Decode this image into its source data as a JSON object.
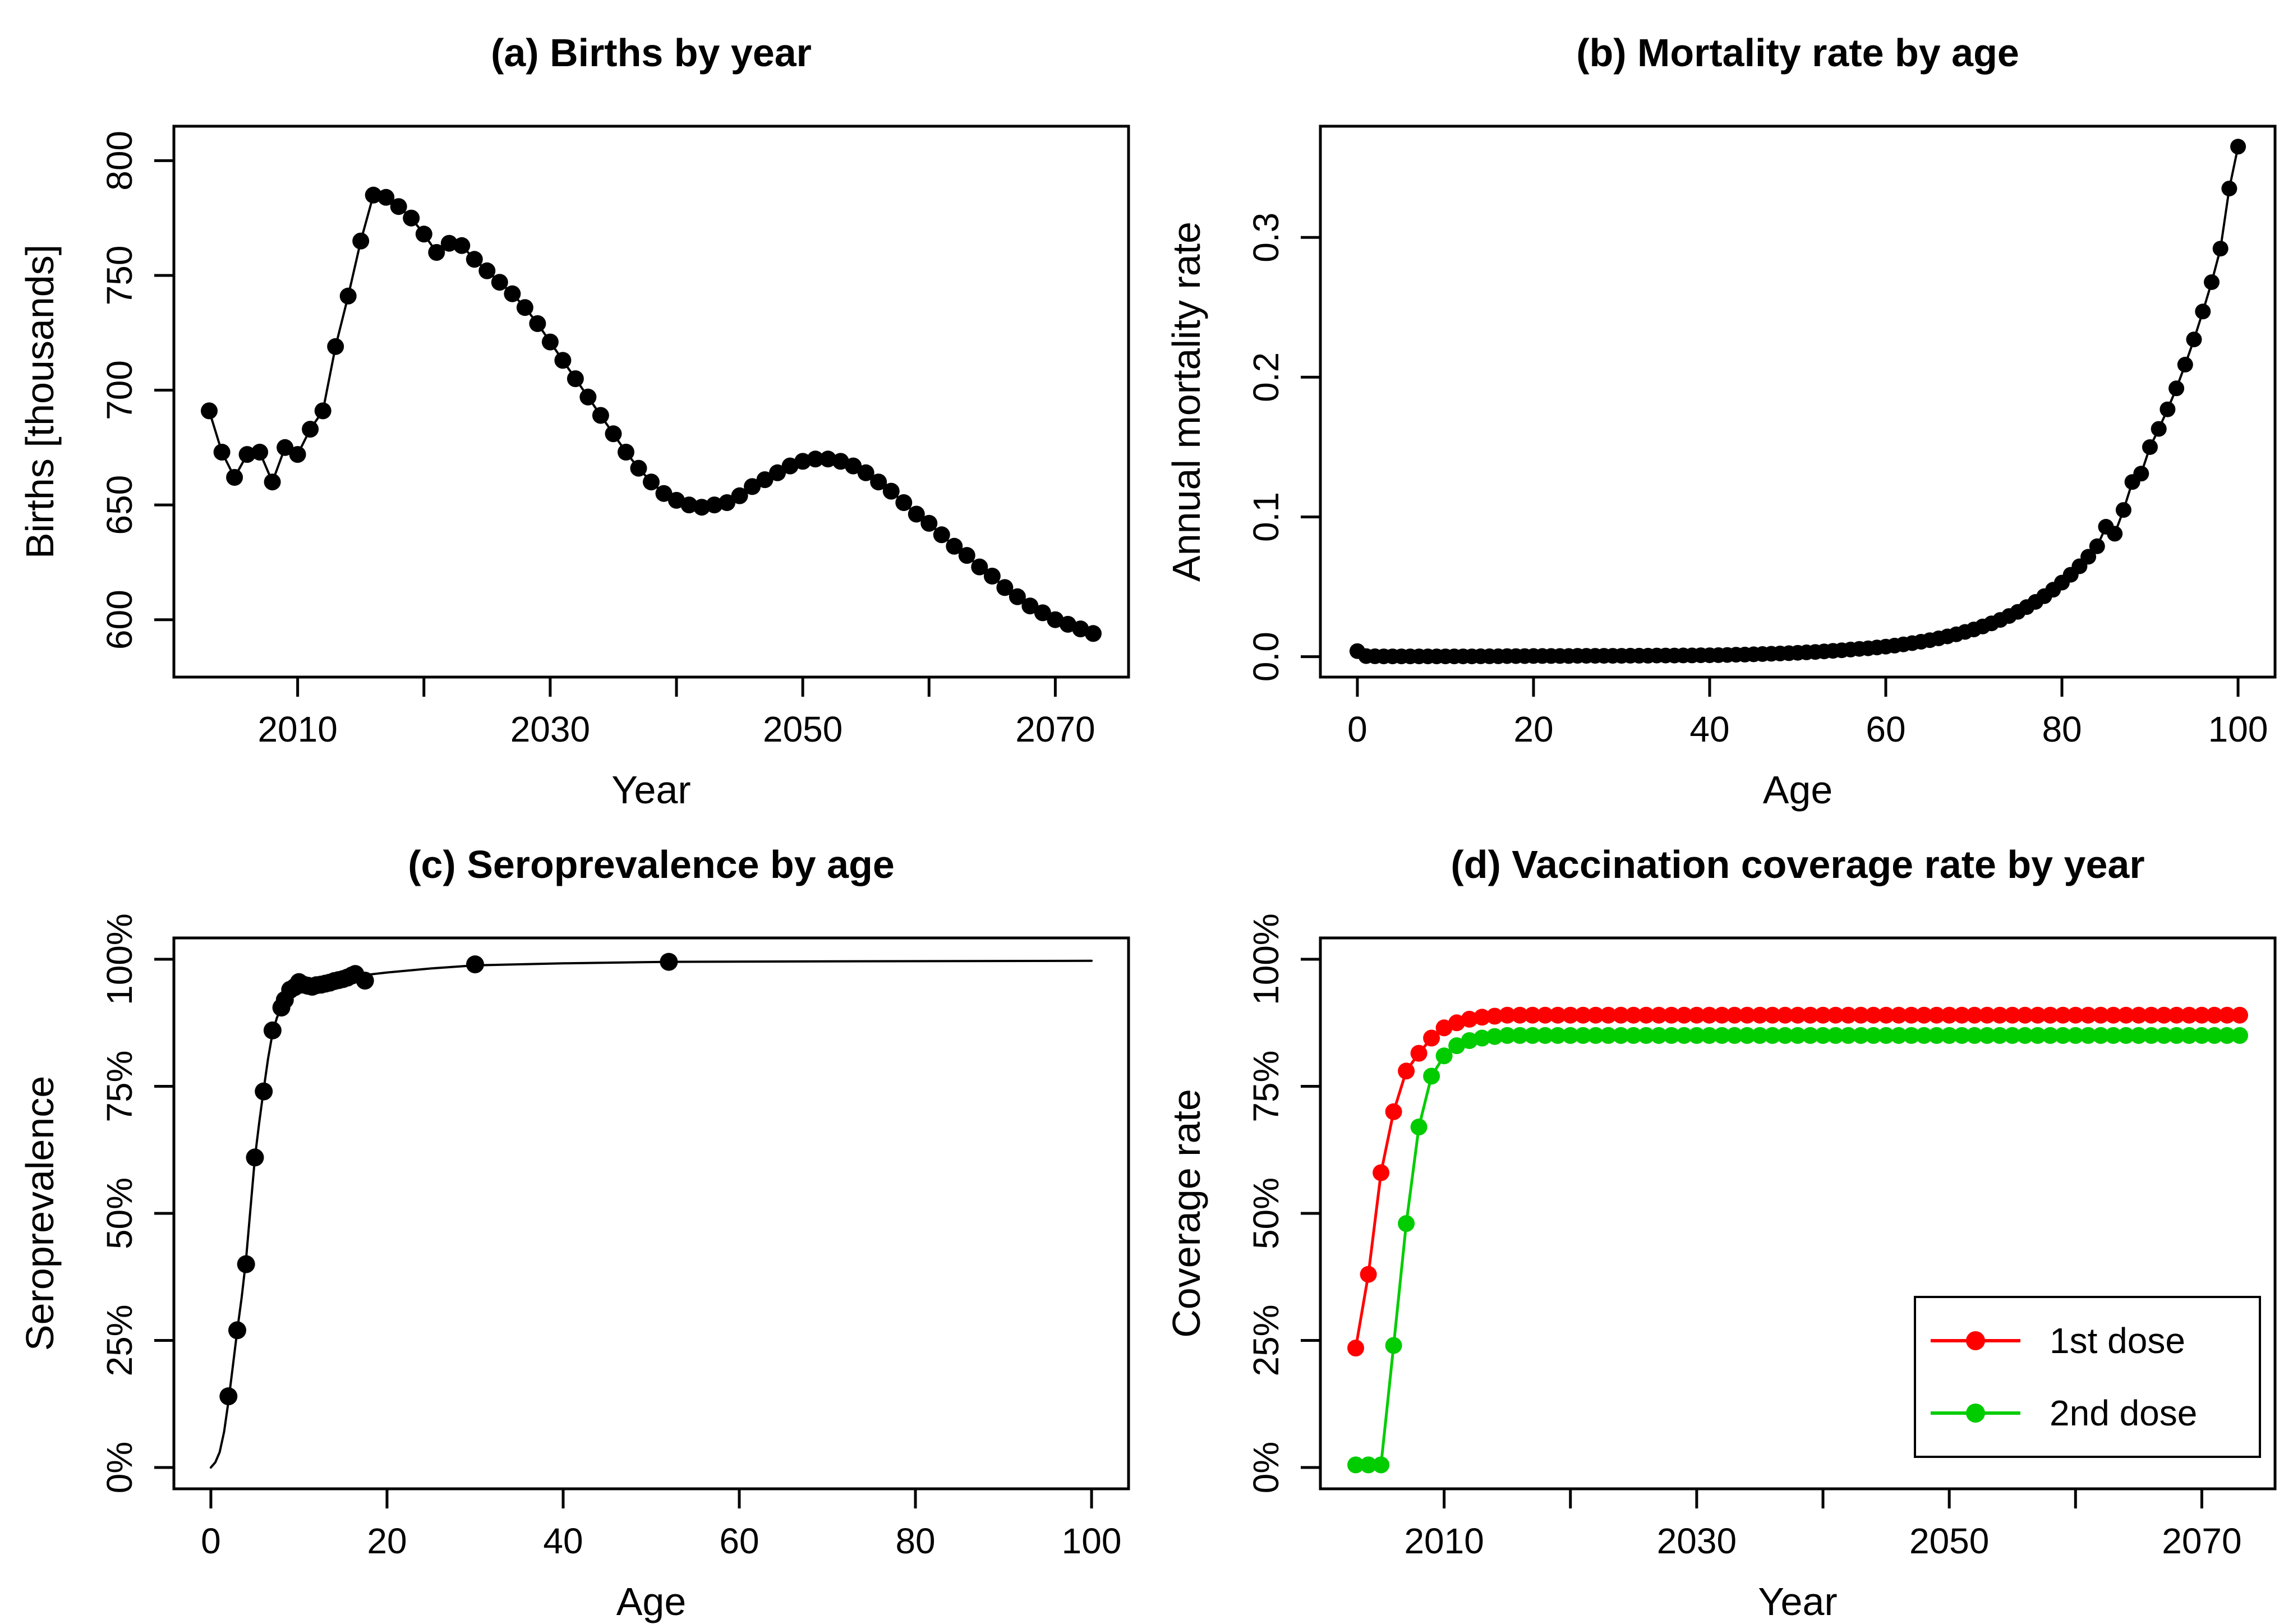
{
  "figure": {
    "background": "#FFFFFF",
    "frame_color": "#000000",
    "series_black": "#000000",
    "series_red": "#FF0000",
    "series_green": "#00CC00"
  },
  "chart_data": [
    {
      "id": "a",
      "type": "line",
      "title": "(a) Births by year",
      "xlabel": "Year",
      "ylabel": "Births [thousands]",
      "xlim": [
        2000.2,
        2075.8
      ],
      "ylim": [
        575,
        815
      ],
      "grid": false,
      "xticks": [
        {
          "v": 2010,
          "label": "2010"
        },
        {
          "v": 2020
        },
        {
          "v": 2030,
          "label": "2030"
        },
        {
          "v": 2040
        },
        {
          "v": 2050,
          "label": "2050"
        },
        {
          "v": 2060
        },
        {
          "v": 2070,
          "label": "2070"
        }
      ],
      "yticks": [
        {
          "v": 600,
          "label": "600"
        },
        {
          "v": 650,
          "label": "650"
        },
        {
          "v": 700,
          "label": "700"
        },
        {
          "v": 750,
          "label": "750"
        },
        {
          "v": 800,
          "label": "800"
        }
      ],
      "series": [
        {
          "name": "births",
          "color": "#000000",
          "line": true,
          "dots": true,
          "dot_radius": 15,
          "x_start": 2003,
          "x_step": 1,
          "values": [
            691,
            673,
            662,
            672,
            673,
            660,
            675,
            672,
            683,
            691,
            719,
            741,
            765,
            785,
            784,
            780,
            775,
            768,
            760,
            764,
            763,
            757,
            752,
            747,
            742,
            736,
            729,
            721,
            713,
            705,
            697,
            689,
            681,
            673,
            666,
            660,
            655,
            652,
            650,
            649,
            650,
            651,
            654,
            658,
            661,
            664,
            667,
            669,
            670,
            670,
            669,
            667,
            664,
            660,
            656,
            651,
            646,
            642,
            637,
            632,
            628,
            623,
            619,
            614,
            610,
            606,
            603,
            600,
            598,
            596,
            594
          ]
        }
      ]
    },
    {
      "id": "b",
      "type": "line",
      "title": "(b) Mortality rate by age",
      "xlabel": "Age",
      "ylabel": "Annual mortality rate",
      "xlim": [
        -4.2,
        104.2
      ],
      "ylim": [
        -0.0146,
        0.3796
      ],
      "grid": false,
      "xticks": [
        {
          "v": 0,
          "label": "0"
        },
        {
          "v": 20,
          "label": "20"
        },
        {
          "v": 40,
          "label": "40"
        },
        {
          "v": 60,
          "label": "60"
        },
        {
          "v": 80,
          "label": "80"
        },
        {
          "v": 100,
          "label": "100"
        }
      ],
      "yticks": [
        {
          "v": 0.0,
          "label": "0.0"
        },
        {
          "v": 0.1,
          "label": "0.1"
        },
        {
          "v": 0.2,
          "label": "0.2"
        },
        {
          "v": 0.3,
          "label": "0.3"
        }
      ],
      "series": [
        {
          "name": "mortality-rate",
          "color": "#000000",
          "line": true,
          "dots": true,
          "dot_radius": 14,
          "x_start": 0,
          "x_step": 1,
          "values": [
            0.004,
            0.0004,
            0.0003,
            0.0002,
            0.0002,
            0.0002,
            0.0002,
            0.0002,
            0.0002,
            0.0002,
            0.0002,
            0.0002,
            0.0002,
            0.0002,
            0.0003,
            0.0003,
            0.0003,
            0.0004,
            0.0004,
            0.0004,
            0.0005,
            0.0005,
            0.0005,
            0.0005,
            0.0005,
            0.0006,
            0.0006,
            0.0006,
            0.0006,
            0.0006,
            0.0006,
            0.0007,
            0.0007,
            0.0007,
            0.0008,
            0.0008,
            0.0008,
            0.0009,
            0.0009,
            0.001,
            0.001,
            0.0011,
            0.0012,
            0.0014,
            0.0015,
            0.0017,
            0.0019,
            0.0021,
            0.0023,
            0.0025,
            0.0028,
            0.0031,
            0.0034,
            0.0038,
            0.0042,
            0.0046,
            0.0051,
            0.0056,
            0.006,
            0.0066,
            0.0072,
            0.0079,
            0.0088,
            0.0097,
            0.0107,
            0.0118,
            0.0131,
            0.0145,
            0.016,
            0.0177,
            0.0195,
            0.0216,
            0.0238,
            0.0263,
            0.0291,
            0.0321,
            0.0355,
            0.0392,
            0.0433,
            0.0479,
            0.053,
            0.0586,
            0.0647,
            0.0715,
            0.079,
            0.093,
            0.088,
            0.105,
            0.125,
            0.131,
            0.15,
            0.163,
            0.177,
            0.192,
            0.209,
            0.227,
            0.247,
            0.268,
            0.292,
            0.335,
            0.365
          ]
        }
      ]
    },
    {
      "id": "c",
      "type": "line",
      "title": "(c) Seroprevalence by age",
      "xlabel": "Age",
      "ylabel": "Seroprevalence",
      "xlim": [
        -4.2,
        104.2
      ],
      "ylim": [
        -4.2,
        104.2
      ],
      "grid": false,
      "xticks": [
        {
          "v": 0,
          "label": "0"
        },
        {
          "v": 20,
          "label": "20"
        },
        {
          "v": 40,
          "label": "40"
        },
        {
          "v": 60,
          "label": "60"
        },
        {
          "v": 80,
          "label": "80"
        },
        {
          "v": 100,
          "label": "100"
        }
      ],
      "yticks": [
        {
          "v": 0,
          "label": "0%"
        },
        {
          "v": 25,
          "label": "25%"
        },
        {
          "v": 50,
          "label": "50%"
        },
        {
          "v": 75,
          "label": "75%"
        },
        {
          "v": 100,
          "label": "100%"
        }
      ],
      "series": [
        {
          "name": "model-curve",
          "color": "#000000",
          "line": true,
          "dots": false,
          "x": [
            0,
            0.5,
            1,
            1.5,
            2,
            2.5,
            3,
            3.5,
            4,
            4.5,
            5,
            5.5,
            6,
            6.5,
            7,
            7.5,
            8,
            8.5,
            9,
            10,
            11,
            12,
            14,
            16,
            18,
            20,
            25,
            30,
            40,
            52,
            70,
            100
          ],
          "values": [
            0,
            1,
            3,
            7,
            13,
            20,
            27,
            33.5,
            41,
            51,
            61,
            68,
            74.5,
            80.5,
            85.5,
            88.5,
            90.5,
            92,
            93,
            94.3,
            95,
            95.4,
            96,
            96.5,
            97,
            97.4,
            98.2,
            98.8,
            99.2,
            99.5,
            99.6,
            99.7
          ]
        },
        {
          "name": "observed-seroprevalence",
          "color": "#000000",
          "line": false,
          "dots": true,
          "dot_radius": 16,
          "x": [
            2,
            3,
            4,
            5,
            6,
            7,
            8,
            8.4,
            9,
            9.5,
            10,
            10.5,
            11,
            11.5,
            12,
            12.5,
            13,
            13.5,
            14,
            14.5,
            15,
            15.5,
            16,
            16.4,
            17.5,
            30,
            52
          ],
          "values": [
            14,
            27,
            40,
            61,
            74,
            86,
            90.5,
            92,
            94,
            94.5,
            95.5,
            95,
            94.8,
            94.6,
            94.9,
            95,
            95.2,
            95.4,
            95.7,
            95.9,
            96.1,
            96.4,
            96.8,
            97.1,
            95.8,
            99,
            99.5
          ]
        }
      ]
    },
    {
      "id": "d",
      "type": "line",
      "title": "(d) Vaccination coverage rate by year",
      "xlabel": "Year",
      "ylabel": "Coverage rate",
      "xlim": [
        2000.2,
        2075.8
      ],
      "ylim": [
        -4.2,
        104.2
      ],
      "grid": false,
      "legend_position": "bottom-right",
      "xticks": [
        {
          "v": 2010,
          "label": "2010"
        },
        {
          "v": 2020
        },
        {
          "v": 2030,
          "label": "2030"
        },
        {
          "v": 2040
        },
        {
          "v": 2050,
          "label": "2050"
        },
        {
          "v": 2060
        },
        {
          "v": 2070,
          "label": "2070"
        }
      ],
      "yticks": [
        {
          "v": 0,
          "label": "0%"
        },
        {
          "v": 25,
          "label": "25%"
        },
        {
          "v": 50,
          "label": "50%"
        },
        {
          "v": 75,
          "label": "75%"
        },
        {
          "v": 100,
          "label": "100%"
        }
      ],
      "series": [
        {
          "name": "first-dose-coverage",
          "legend": "1st dose",
          "color": "#FF0000",
          "line": true,
          "dots": true,
          "dot_radius": 15,
          "x_start": 2003,
          "x_step": 1,
          "head": [
            23.5,
            38,
            58,
            70,
            78,
            81.5,
            84.5,
            86.5,
            87.5,
            88.2,
            88.6,
            88.8
          ],
          "flat": 89,
          "count": 71
        },
        {
          "name": "second-dose-coverage",
          "legend": "2nd dose",
          "color": "#00CC00",
          "line": true,
          "dots": true,
          "dot_radius": 15,
          "x_start": 2003,
          "x_step": 1,
          "head": [
            0.5,
            0.5,
            0.5,
            24,
            48,
            67,
            77,
            81,
            83,
            84,
            84.5,
            84.8
          ],
          "flat": 85,
          "count": 71
        }
      ]
    }
  ]
}
